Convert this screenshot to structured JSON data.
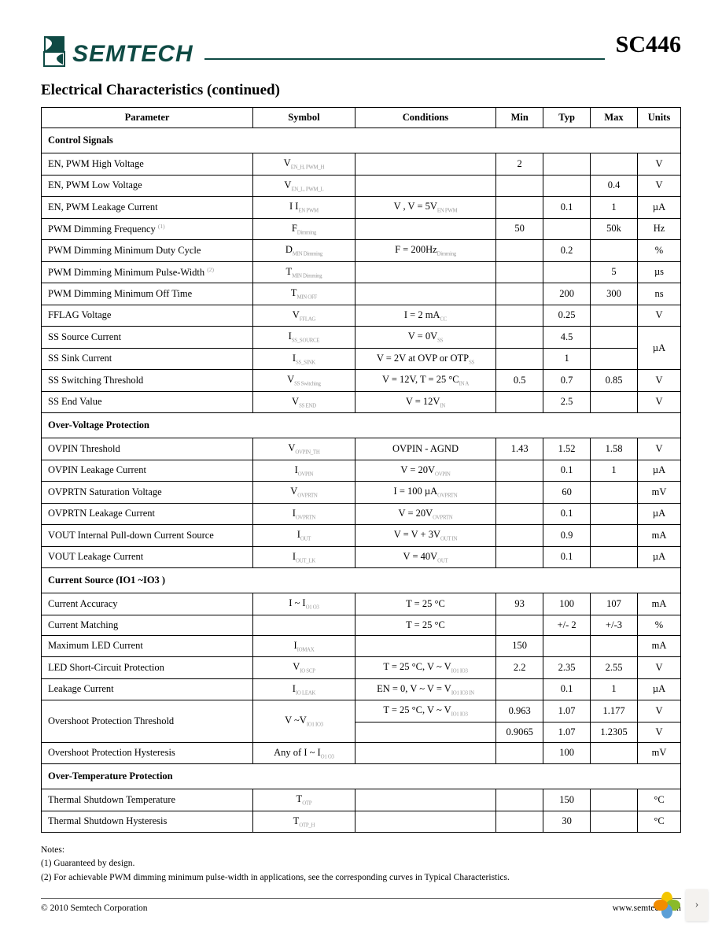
{
  "header": {
    "brand": "SEMTECH",
    "part_number": "SC446",
    "logo_color": "#0f4a44",
    "rule_color": "#0f4a44"
  },
  "section_title": "Electrical Characteristics (continued)",
  "table": {
    "header": {
      "param": "Parameter",
      "symbol": "Symbol",
      "conditions": "Conditions",
      "min": "Min",
      "typ": "Typ",
      "max": "Max",
      "units": "Units"
    },
    "sections": [
      {
        "title": "Control Signals",
        "rows": [
          {
            "param": "EN, PWM High Voltage",
            "symbol": "V",
            "sub": "EN_H, PWM_H",
            "cond": "",
            "min": "2",
            "typ": "",
            "max": "",
            "units": "V"
          },
          {
            "param": "EN, PWM Low Voltage",
            "symbol": "V",
            "sub": "EN_L, PWM_L",
            "cond": "",
            "min": "",
            "typ": "",
            "max": "0.4",
            "units": "V"
          },
          {
            "param": "EN, PWM Leakage Current",
            "symbol": "I  I",
            "sub": "EN PWM",
            "cond": "V  , V    = 5V",
            "csub": "EN  PWM",
            "min": "",
            "typ": "0.1",
            "max": "1",
            "units": "µA"
          },
          {
            "param": "PWM Dimming Frequency",
            "pnote": "(1)",
            "symbol": "F",
            "sub": "Dimming",
            "cond": "",
            "min": "50",
            "typ": "",
            "max": "50k",
            "units": "Hz"
          },
          {
            "param": "PWM Dimming Minimum Duty Cycle",
            "symbol": "D",
            "sub": "MIN Dimming",
            "cond": "F       = 200Hz",
            "csub": "Dimming",
            "min": "",
            "typ": "0.2",
            "max": "",
            "units": "%"
          },
          {
            "param": "PWM Dimming Minimum Pulse-Width",
            "pnote": "(2)",
            "symbol": "T",
            "sub": "MIN Dimming",
            "cond": "",
            "min": "",
            "typ": "",
            "max": "5",
            "units": "µs"
          },
          {
            "param": "PWM Dimming Minimum Off Time",
            "symbol": "T",
            "sub": "MIN OFF",
            "cond": "",
            "min": "",
            "typ": "200",
            "max": "300",
            "units": "ns"
          },
          {
            "param": "FFLAG Voltage",
            "symbol": "V",
            "sub": "FFLAG",
            "cond": "I    = 2 mA",
            "csub": "CC",
            "min": "",
            "typ": "0.25",
            "max": "",
            "units": "V"
          },
          {
            "param": "SS Source Current",
            "symbol": "I",
            "sub": "SS_SOURCE",
            "cond": "V   = 0V",
            "csub": "SS",
            "min": "",
            "typ": "4.5",
            "max": "",
            "units": "µA",
            "rowspanUnits": 2
          },
          {
            "param": "SS Sink Current",
            "symbol": "I",
            "sub": "SS_SINK",
            "cond": "V  = 2V at OVP or OTP",
            "csub": "SS",
            "min": "",
            "typ": "1",
            "max": "",
            "skipUnits": true
          },
          {
            "param": "SS Switching Threshold",
            "symbol": "V",
            "sub": "SS Switching",
            "cond": "V  = 12V, T  = 25 °C",
            "csub": "IN         A",
            "min": "0.5",
            "typ": "0.7",
            "max": "0.85",
            "units": "V"
          },
          {
            "param": "SS End Value",
            "symbol": "V",
            "sub": "SS END",
            "cond": "V   = 12V",
            "csub": "IN",
            "min": "",
            "typ": "2.5",
            "max": "",
            "units": "V"
          }
        ]
      },
      {
        "title": "Over-Voltage Protection",
        "rows": [
          {
            "param": "OVPIN Threshold",
            "symbol": "V",
            "sub": "OVPIN_TH",
            "cond": "OVPIN - AGND",
            "min": "1.43",
            "typ": "1.52",
            "max": "1.58",
            "units": "V"
          },
          {
            "param": "OVPIN Leakage Current",
            "symbol": "I",
            "sub": "OVPIN",
            "cond": "V     = 20V",
            "csub": "OVPIN",
            "min": "",
            "typ": "0.1",
            "max": "1",
            "units": "µA"
          },
          {
            "param": "OVPRTN Saturation Voltage",
            "symbol": "V",
            "sub": "OVPRTN",
            "cond": "I       = 100 µA",
            "csub": "OVPRTN",
            "min": "",
            "typ": "60",
            "max": "",
            "units": "mV"
          },
          {
            "param": "OVPRTN Leakage Current",
            "symbol": "I",
            "sub": "OVPRTN",
            "cond": "V       = 20V",
            "csub": "OVPRTN",
            "min": "",
            "typ": "0.1",
            "max": "",
            "units": "µA"
          },
          {
            "param": "VOUT Internal Pull-down Current Source",
            "symbol": "I",
            "sub": "OUT",
            "cond": "V    = V   + 3V",
            "csub": "OUT    IN",
            "min": "",
            "typ": "0.9",
            "max": "",
            "units": "mA"
          },
          {
            "param": "VOUT Leakage Current",
            "symbol": "I",
            "sub": "OUT_LK",
            "cond": "V    = 40V",
            "csub": "OUT",
            "min": "",
            "typ": "0.1",
            "max": "",
            "units": "µA"
          }
        ]
      },
      {
        "title": "Current Source (IO1 ~IO3 )",
        "rows": [
          {
            "param": "Current Accuracy",
            "symbol": "I  ~ I",
            "sub": "O1    O3",
            "cond": "T = 25 °C",
            "min": "93",
            "typ": "100",
            "max": "107",
            "units": "mA"
          },
          {
            "param": "Current Matching",
            "symbol": "",
            "cond": "T = 25 °C",
            "min": "",
            "typ": "+/- 2",
            "max": "+/-3",
            "units": "%"
          },
          {
            "param": "Maximum LED Current",
            "symbol": "I",
            "sub": "IOMAX",
            "cond": "",
            "min": "150",
            "typ": "",
            "max": "",
            "units": "mA"
          },
          {
            "param": "LED Short-Circuit Protection",
            "symbol": "V",
            "sub": "IO SCP",
            "cond": "T = 25 °C, V   ~ V",
            "csub": "IO1   IO3",
            "min": "2.2",
            "typ": "2.35",
            "max": "2.55",
            "units": "V"
          },
          {
            "param": "Leakage Current",
            "symbol": "I",
            "sub": "IO LEAK",
            "cond": "EN = 0, V   ~ V   = V",
            "csub": "IO1   IO3    IN",
            "min": "",
            "typ": "0.1",
            "max": "1",
            "units": "µA"
          },
          {
            "param": "Overshoot Protection Threshold",
            "symbol": "V   ~V",
            "sub": "IO1    IO3",
            "cond": "T = 25 °C, V   ~ V",
            "csub": "IO1   IO3",
            "min": "0.963",
            "typ": "1.07",
            "max": "1.177",
            "units": "V",
            "rowspanParam": 2,
            "rowspanSymbol": 2
          },
          {
            "skipParam": true,
            "skipSymbol": true,
            "cond": "",
            "min": "0.9065",
            "typ": "1.07",
            "max": "1.2305",
            "units": "V"
          },
          {
            "param": "Overshoot Protection Hysteresis",
            "symbol": "Any of I   ~ I",
            "sub": "O1    O3",
            "cond": "",
            "min": "",
            "typ": "100",
            "max": "",
            "units": "mV"
          }
        ]
      },
      {
        "title": "Over-Temperature Protection",
        "rows": [
          {
            "param": "Thermal Shutdown Temperature",
            "symbol": "T",
            "sub": "OTP",
            "cond": "",
            "min": "",
            "typ": "150",
            "max": "",
            "units": "°C"
          },
          {
            "param": "Thermal Shutdown Hysteresis",
            "symbol": "T",
            "sub": "OTP_H",
            "cond": "",
            "min": "",
            "typ": "30",
            "max": "",
            "units": "°C"
          }
        ]
      }
    ]
  },
  "notes": {
    "heading": "Notes:",
    "items": [
      "(1)  Guaranteed by design.",
      "(2)  For achievable PWM dimming minimum pulse-width in applications, see the corresponding curves in Typical Characteristics."
    ]
  },
  "footer": {
    "copyright": "© 2010 Semtech Corporation",
    "url": "www.semtech.com"
  },
  "widget_petals": [
    "#f4c600",
    "#8aba2a",
    "#5c9fd6",
    "#f28c00"
  ]
}
